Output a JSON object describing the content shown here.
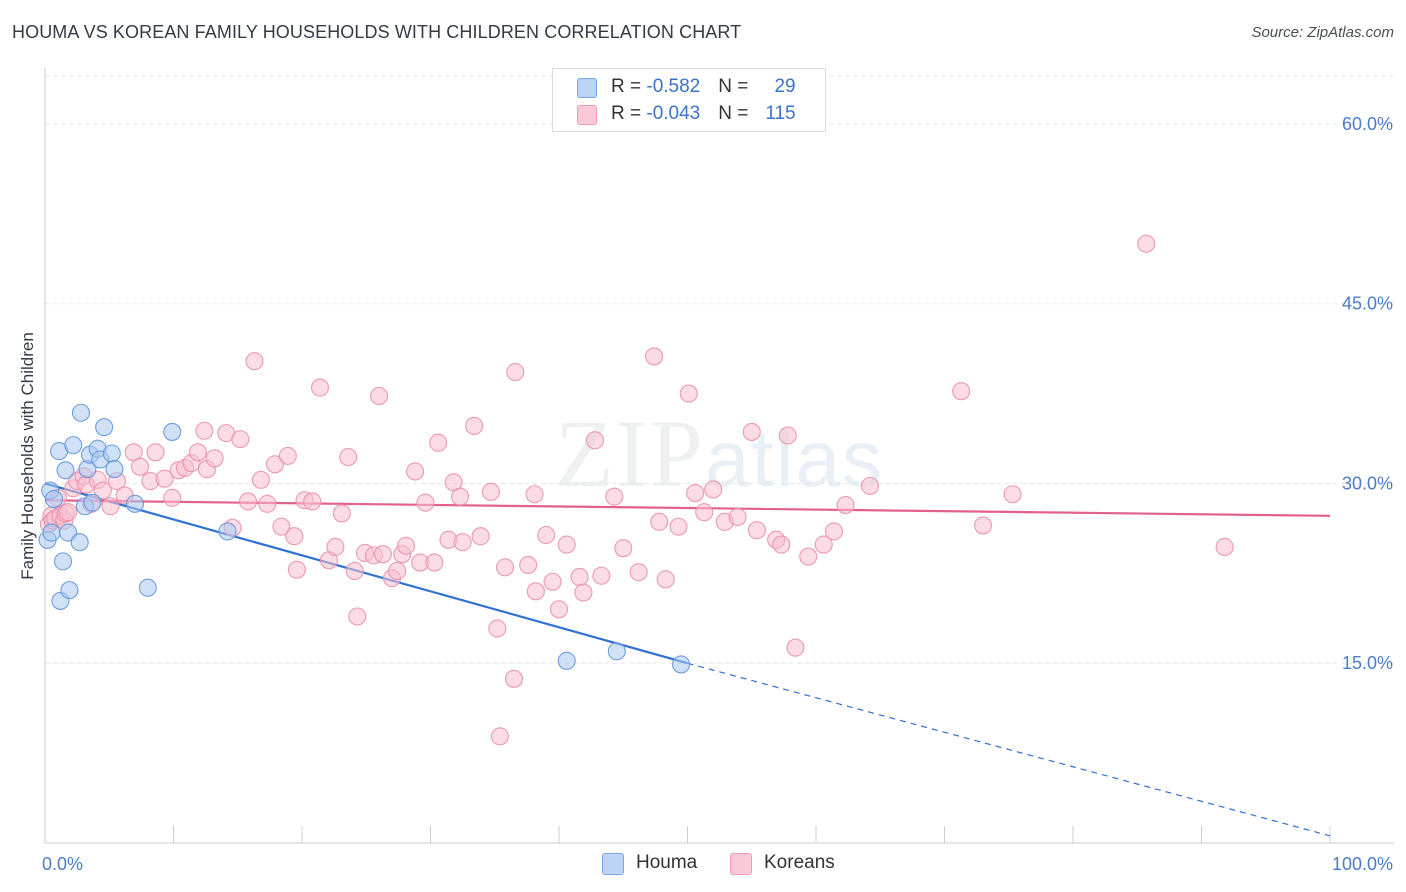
{
  "title": "HOUMA VS KOREAN FAMILY HOUSEHOLDS WITH CHILDREN CORRELATION CHART",
  "source": "Source: ZipAtlas.com",
  "watermark": {
    "zip": "ZIP",
    "atlas": "atlas"
  },
  "legend": {
    "houma": {
      "r_label": "R = ",
      "r_value": "-0.582",
      "n_label": "N = ",
      "n_value": "29"
    },
    "koreans": {
      "r_label": "R = ",
      "r_value": "-0.043",
      "n_label": "N = ",
      "n_value": "115"
    }
  },
  "bottom_legend": {
    "houma": "Houma",
    "koreans": "Koreans"
  },
  "colors": {
    "houma_fill": "#a9c8f0",
    "houma_stroke": "#5f95dc",
    "houma_line": "#2f72d1",
    "koreans_fill": "#f7c0d0",
    "koreans_stroke": "#ea8fab",
    "koreans_line": "#e2608c",
    "tick": "#4a7cc9",
    "grid": "#e3e6ea"
  },
  "chart_data": {
    "type": "scatter",
    "title": "HOUMA VS KOREAN FAMILY HOUSEHOLDS WITH CHILDREN CORRELATION CHART",
    "xlabel": "",
    "ylabel": "Family Households with Children",
    "xlim": [
      0,
      100
    ],
    "ylim": [
      0,
      64
    ],
    "x_tick_labels": [
      "0.0%",
      "100.0%"
    ],
    "y_ticks": [
      15,
      30,
      45,
      60
    ],
    "y_tick_labels": [
      "15.0%",
      "30.0%",
      "45.0%",
      "60.0%"
    ],
    "series": [
      {
        "name": "Houma",
        "points": [
          [
            0.2,
            25.3
          ],
          [
            0.4,
            29.4
          ],
          [
            0.5,
            25.9
          ],
          [
            0.7,
            28.7
          ],
          [
            1.1,
            32.7
          ],
          [
            1.2,
            20.2
          ],
          [
            1.4,
            23.5
          ],
          [
            1.6,
            31.1
          ],
          [
            1.8,
            25.9
          ],
          [
            1.9,
            21.1
          ],
          [
            2.2,
            33.2
          ],
          [
            2.7,
            25.1
          ],
          [
            2.8,
            35.9
          ],
          [
            3.1,
            28.1
          ],
          [
            3.3,
            31.2
          ],
          [
            3.5,
            32.4
          ],
          [
            3.7,
            28.4
          ],
          [
            4.1,
            32.9
          ],
          [
            4.3,
            32.0
          ],
          [
            4.6,
            34.7
          ],
          [
            5.2,
            32.5
          ],
          [
            5.4,
            31.2
          ],
          [
            7.0,
            28.3
          ],
          [
            8.0,
            21.3
          ],
          [
            9.9,
            34.3
          ],
          [
            14.2,
            26.0
          ],
          [
            40.6,
            15.2
          ],
          [
            44.5,
            16.0
          ],
          [
            49.5,
            14.9
          ]
        ],
        "trend": {
          "x": [
            0,
            50
          ],
          "y": [
            30.0,
            15.0
          ],
          "dashed_to": [
            100,
            0.6
          ]
        }
      },
      {
        "name": "Koreans",
        "points": [
          [
            0.3,
            26.6
          ],
          [
            0.5,
            27.3
          ],
          [
            0.6,
            26.9
          ],
          [
            0.8,
            27.1
          ],
          [
            1.0,
            28.8
          ],
          [
            1.2,
            27.3
          ],
          [
            1.5,
            26.9
          ],
          [
            1.6,
            27.5
          ],
          [
            1.8,
            27.6
          ],
          [
            2.2,
            29.6
          ],
          [
            2.5,
            30.2
          ],
          [
            3.0,
            30.6
          ],
          [
            3.2,
            29.9
          ],
          [
            3.6,
            28.3
          ],
          [
            4.1,
            30.3
          ],
          [
            4.5,
            29.4
          ],
          [
            5.1,
            28.1
          ],
          [
            5.6,
            30.2
          ],
          [
            6.2,
            29.0
          ],
          [
            6.9,
            32.6
          ],
          [
            7.4,
            31.4
          ],
          [
            8.2,
            30.2
          ],
          [
            8.6,
            32.6
          ],
          [
            9.3,
            30.4
          ],
          [
            9.9,
            28.8
          ],
          [
            10.4,
            31.1
          ],
          [
            10.9,
            31.3
          ],
          [
            11.4,
            31.7
          ],
          [
            11.9,
            32.6
          ],
          [
            12.4,
            34.4
          ],
          [
            12.6,
            31.2
          ],
          [
            13.2,
            32.1
          ],
          [
            14.1,
            34.2
          ],
          [
            14.6,
            26.3
          ],
          [
            15.2,
            33.7
          ],
          [
            15.8,
            28.5
          ],
          [
            16.3,
            40.2
          ],
          [
            16.8,
            30.3
          ],
          [
            17.3,
            28.3
          ],
          [
            17.9,
            31.6
          ],
          [
            18.4,
            26.4
          ],
          [
            18.9,
            32.3
          ],
          [
            19.4,
            25.6
          ],
          [
            19.6,
            22.8
          ],
          [
            20.2,
            28.6
          ],
          [
            20.8,
            28.5
          ],
          [
            21.4,
            38.0
          ],
          [
            22.1,
            23.6
          ],
          [
            22.6,
            24.7
          ],
          [
            23.1,
            27.5
          ],
          [
            23.6,
            32.2
          ],
          [
            24.1,
            22.7
          ],
          [
            24.3,
            18.9
          ],
          [
            24.9,
            24.2
          ],
          [
            25.6,
            24.0
          ],
          [
            26.0,
            37.3
          ],
          [
            26.3,
            24.1
          ],
          [
            27.0,
            22.1
          ],
          [
            27.4,
            22.7
          ],
          [
            27.8,
            24.1
          ],
          [
            28.1,
            24.8
          ],
          [
            28.8,
            31.0
          ],
          [
            29.2,
            23.4
          ],
          [
            29.6,
            28.4
          ],
          [
            30.3,
            23.4
          ],
          [
            30.6,
            33.4
          ],
          [
            31.4,
            25.3
          ],
          [
            31.8,
            30.1
          ],
          [
            32.3,
            28.9
          ],
          [
            32.5,
            25.1
          ],
          [
            33.4,
            34.8
          ],
          [
            33.9,
            25.6
          ],
          [
            34.7,
            29.3
          ],
          [
            35.2,
            17.9
          ],
          [
            35.8,
            23.0
          ],
          [
            35.4,
            8.9
          ],
          [
            36.5,
            13.7
          ],
          [
            36.6,
            39.3
          ],
          [
            37.6,
            23.2
          ],
          [
            38.1,
            29.1
          ],
          [
            38.2,
            21.0
          ],
          [
            39.0,
            25.7
          ],
          [
            39.5,
            21.8
          ],
          [
            40.0,
            19.5
          ],
          [
            40.6,
            24.9
          ],
          [
            41.6,
            22.2
          ],
          [
            41.9,
            20.9
          ],
          [
            42.8,
            33.6
          ],
          [
            43.3,
            22.3
          ],
          [
            44.3,
            28.9
          ],
          [
            45.0,
            24.6
          ],
          [
            46.2,
            22.6
          ],
          [
            47.4,
            40.6
          ],
          [
            47.8,
            26.8
          ],
          [
            48.3,
            22.0
          ],
          [
            49.3,
            26.4
          ],
          [
            50.1,
            37.5
          ],
          [
            50.6,
            29.2
          ],
          [
            51.3,
            27.6
          ],
          [
            52.0,
            29.5
          ],
          [
            52.9,
            26.8
          ],
          [
            53.9,
            27.2
          ],
          [
            55.0,
            34.3
          ],
          [
            55.4,
            26.1
          ],
          [
            56.9,
            25.3
          ],
          [
            57.3,
            24.9
          ],
          [
            57.8,
            34.0
          ],
          [
            58.4,
            16.3
          ],
          [
            59.4,
            23.9
          ],
          [
            60.6,
            24.9
          ],
          [
            61.4,
            26.0
          ],
          [
            62.3,
            28.2
          ],
          [
            64.2,
            29.8
          ],
          [
            71.3,
            37.7
          ],
          [
            73.0,
            26.5
          ],
          [
            75.3,
            29.1
          ],
          [
            85.7,
            50.0
          ],
          [
            91.8,
            24.7
          ]
        ],
        "trend": {
          "x": [
            0,
            100
          ],
          "y": [
            28.6,
            27.3
          ]
        }
      }
    ]
  }
}
